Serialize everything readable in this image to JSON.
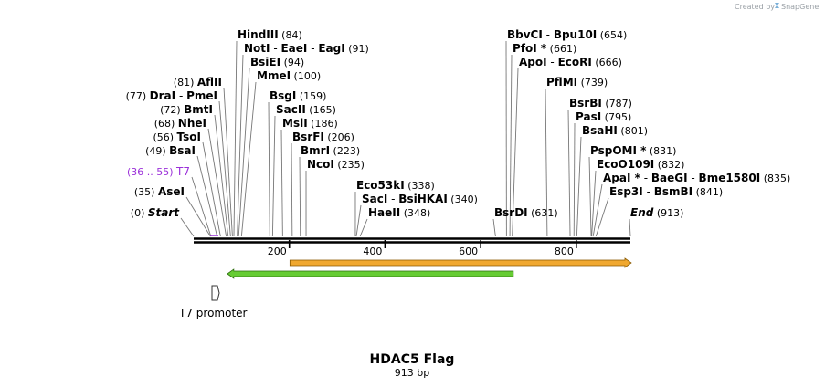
{
  "credit": {
    "text": "Created by",
    "brand": "SnapGene"
  },
  "map": {
    "name": "HDAC5 Flag",
    "length_label": "913 bp",
    "length": 913,
    "scale_ticks": [
      {
        "label": "200",
        "pos": 200
      },
      {
        "label": "400",
        "pos": 400
      },
      {
        "label": "600",
        "pos": 600
      },
      {
        "label": "800",
        "pos": 800
      }
    ]
  },
  "sites_left": [
    {
      "names": [
        "AflII"
      ],
      "pos_label": "(81)",
      "pos": 81
    },
    {
      "names": [
        "DraI",
        "PmeI"
      ],
      "pos_label": "(77)",
      "pos": 77
    },
    {
      "names": [
        "BmtI"
      ],
      "pos_label": "(72)",
      "pos": 72
    },
    {
      "names": [
        "NheI"
      ],
      "pos_label": "(68)",
      "pos": 68
    },
    {
      "names": [
        "TsoI"
      ],
      "pos_label": "(56)",
      "pos": 56
    },
    {
      "names": [
        "BsaI"
      ],
      "pos_label": "(49)",
      "pos": 49
    },
    {
      "names": [
        "T7"
      ],
      "pos_label": "(36 .. 55)",
      "pos": 36,
      "color": "#9b30d9"
    },
    {
      "names": [
        "AseI"
      ],
      "pos_label": "(35)",
      "pos": 35
    },
    {
      "names": [
        "Start"
      ],
      "pos_label": "(0)",
      "pos": 0,
      "italic": true
    }
  ],
  "sites_right": [
    {
      "names": [
        "HindIII"
      ],
      "pos_label": "(84)",
      "pos": 84
    },
    {
      "names": [
        "NotI",
        "EaeI",
        "EagI"
      ],
      "pos_label": "(91)",
      "pos": 91
    },
    {
      "names": [
        "BsiEI"
      ],
      "pos_label": "(94)",
      "pos": 94
    },
    {
      "names": [
        "MmeI"
      ],
      "pos_label": "(100)",
      "pos": 100
    },
    {
      "names": [
        "BsgI"
      ],
      "pos_label": "(159)",
      "pos": 159
    },
    {
      "names": [
        "SacII"
      ],
      "pos_label": "(165)",
      "pos": 165
    },
    {
      "names": [
        "MslI"
      ],
      "pos_label": "(186)",
      "pos": 186
    },
    {
      "names": [
        "BsrFI"
      ],
      "pos_label": "(206)",
      "pos": 206
    },
    {
      "names": [
        "BmrI"
      ],
      "pos_label": "(223)",
      "pos": 223
    },
    {
      "names": [
        "NcoI"
      ],
      "pos_label": "(235)",
      "pos": 235
    },
    {
      "names": [
        "Eco53kI"
      ],
      "pos_label": "(338)",
      "pos": 338
    },
    {
      "names": [
        "SacI",
        "BsiHKAI"
      ],
      "pos_label": "(340)",
      "pos": 340
    },
    {
      "names": [
        "HaeII"
      ],
      "pos_label": "(348)",
      "pos": 348
    },
    {
      "names": [
        "BbvCI",
        "Bpu10I"
      ],
      "pos_label": "(654)",
      "pos": 654
    },
    {
      "names": [
        "PfoI *"
      ],
      "pos_label": "(661)",
      "pos": 661
    },
    {
      "names": [
        "ApoI",
        "EcoRI"
      ],
      "pos_label": "(666)",
      "pos": 666
    },
    {
      "names": [
        "PflMI"
      ],
      "pos_label": "(739)",
      "pos": 739
    },
    {
      "names": [
        "BsrBI"
      ],
      "pos_label": "(787)",
      "pos": 787
    },
    {
      "names": [
        "PasI"
      ],
      "pos_label": "(795)",
      "pos": 795
    },
    {
      "names": [
        "BsaHI"
      ],
      "pos_label": "(801)",
      "pos": 801
    },
    {
      "names": [
        "PspOMI *"
      ],
      "pos_label": "(831)",
      "pos": 831
    },
    {
      "names": [
        "EcoO109I"
      ],
      "pos_label": "(832)",
      "pos": 832
    },
    {
      "names": [
        "ApaI *",
        "BaeGI",
        "Bme1580I"
      ],
      "pos_label": "(835)",
      "pos": 835
    },
    {
      "names": [
        "Esp3I",
        "BsmBI"
      ],
      "pos_label": "(841)",
      "pos": 841
    },
    {
      "names": [
        "BsrDI"
      ],
      "pos_label": "(631)",
      "pos": 631
    },
    {
      "names": [
        "End"
      ],
      "pos_label": "(913)",
      "pos": 913,
      "italic": true
    }
  ],
  "features": [
    {
      "name": "orange-arrow",
      "start": 100,
      "end": 913,
      "direction": "forward",
      "color": "#f0a830"
    },
    {
      "name": "green-arrow",
      "start": 36,
      "end": 630,
      "direction": "reverse",
      "color": "#66cc33"
    }
  ],
  "promoter": {
    "label": "T7 promoter",
    "start": 36,
    "end": 55
  }
}
